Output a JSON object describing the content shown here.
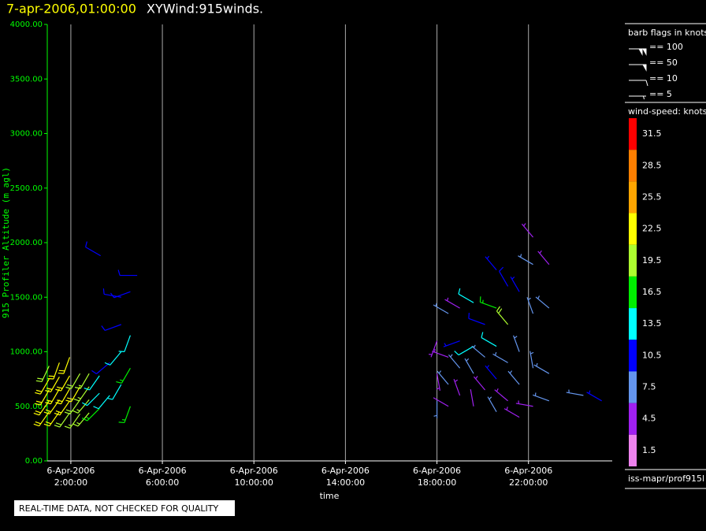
{
  "chart_data": {
    "type": "windbarb",
    "title_time": "7-apr-2006,01:00:00",
    "title": "XYWind:915winds.",
    "ylabel": "915 Profiler Altitude (m agl)",
    "xlabel": "time",
    "xlim": [
      0.97,
      25.66
    ],
    "ylim": [
      0,
      4000
    ],
    "yticks": [
      {
        "value": 0,
        "label": "0.00"
      },
      {
        "value": 500,
        "label": "500.00"
      },
      {
        "value": 1000,
        "label": "1000.00"
      },
      {
        "value": 1500,
        "label": "1500.00"
      },
      {
        "value": 2000,
        "label": "2000.00"
      },
      {
        "value": 2500,
        "label": "2500.00"
      },
      {
        "value": 3000,
        "label": "3000.00"
      },
      {
        "value": 3500,
        "label": "3500.00"
      },
      {
        "value": 4000,
        "label": "4000.00"
      }
    ],
    "xticks": [
      {
        "value": 2,
        "date": "6-Apr-2006",
        "label": "2:00:00"
      },
      {
        "value": 6,
        "date": "6-Apr-2006",
        "label": "6:00:00"
      },
      {
        "value": 10,
        "date": "6-Apr-2006",
        "label": "10:00:00"
      },
      {
        "value": 14,
        "date": "6-Apr-2006",
        "label": "14:00:00"
      },
      {
        "value": 18,
        "date": "6-Apr-2006",
        "label": "18:00:00"
      },
      {
        "value": 22,
        "date": "6-Apr-2006",
        "label": "22:00:00"
      }
    ],
    "grid": true,
    "barb_legend_title": "barb flags in knots",
    "barb_flags": [
      {
        "label": "== 100",
        "value": 100
      },
      {
        "label": "== 50",
        "value": 50
      },
      {
        "label": "== 10",
        "value": 10
      },
      {
        "label": "== 5",
        "value": 5
      }
    ],
    "colorbar": {
      "title": "wind-speed: knots",
      "colors": [
        "#ff0000",
        "#ff7f00",
        "#ffa500",
        "#ffff00",
        "#adff2f",
        "#00ee00",
        "#00ffff",
        "#0000ff",
        "#6495ed",
        "#a020f0",
        "#ee82ee"
      ],
      "labels": [
        31.5,
        28.5,
        25.5,
        22.5,
        19.5,
        16.5,
        13.5,
        10.5,
        7.5,
        4.5,
        1.5
      ]
    },
    "source": "iss-mapr/prof915l",
    "footer": "REAL-TIME DATA, NOT CHECKED FOR QUALITY",
    "barbs": [
      {
        "t": 1.05,
        "alt": 450,
        "speed": 21,
        "dir": 215
      },
      {
        "t": 1.05,
        "alt": 550,
        "speed": 22,
        "dir": 215
      },
      {
        "t": 1.05,
        "alt": 650,
        "speed": 22,
        "dir": 210
      },
      {
        "t": 1.05,
        "alt": 750,
        "speed": 21,
        "dir": 210
      },
      {
        "t": 1.05,
        "alt": 870,
        "speed": 20,
        "dir": 205
      },
      {
        "t": 1.5,
        "alt": 450,
        "speed": 21,
        "dir": 215
      },
      {
        "t": 1.5,
        "alt": 560,
        "speed": 22,
        "dir": 215
      },
      {
        "t": 1.5,
        "alt": 660,
        "speed": 22,
        "dir": 210
      },
      {
        "t": 1.5,
        "alt": 770,
        "speed": 21,
        "dir": 210
      },
      {
        "t": 1.5,
        "alt": 900,
        "speed": 23,
        "dir": 200
      },
      {
        "t": 1.95,
        "alt": 440,
        "speed": 20,
        "dir": 215
      },
      {
        "t": 1.95,
        "alt": 550,
        "speed": 21,
        "dir": 215
      },
      {
        "t": 1.95,
        "alt": 660,
        "speed": 22,
        "dir": 210
      },
      {
        "t": 1.95,
        "alt": 780,
        "speed": 21,
        "dir": 210
      },
      {
        "t": 1.95,
        "alt": 950,
        "speed": 22,
        "dir": 200
      },
      {
        "t": 2.4,
        "alt": 430,
        "speed": 19,
        "dir": 215
      },
      {
        "t": 2.4,
        "alt": 560,
        "speed": 20,
        "dir": 215
      },
      {
        "t": 2.4,
        "alt": 680,
        "speed": 21,
        "dir": 210
      },
      {
        "t": 2.4,
        "alt": 800,
        "speed": 20,
        "dir": 210
      },
      {
        "t": 2.8,
        "alt": 440,
        "speed": 18,
        "dir": 220
      },
      {
        "t": 2.8,
        "alt": 560,
        "speed": 19,
        "dir": 220
      },
      {
        "t": 2.8,
        "alt": 680,
        "speed": 19,
        "dir": 215
      },
      {
        "t": 2.8,
        "alt": 800,
        "speed": 18,
        "dir": 210
      },
      {
        "t": 3.25,
        "alt": 480,
        "speed": 16,
        "dir": 225
      },
      {
        "t": 3.25,
        "alt": 620,
        "speed": 14,
        "dir": 225
      },
      {
        "t": 3.25,
        "alt": 780,
        "speed": 14,
        "dir": 215
      },
      {
        "t": 3.3,
        "alt": 1880,
        "speed": 11,
        "dir": 300
      },
      {
        "t": 3.7,
        "alt": 600,
        "speed": 12,
        "dir": 220
      },
      {
        "t": 3.7,
        "alt": 900,
        "speed": 11,
        "dir": 230
      },
      {
        "t": 4.2,
        "alt": 700,
        "speed": 13,
        "dir": 210
      },
      {
        "t": 4.2,
        "alt": 1000,
        "speed": 14,
        "dir": 220
      },
      {
        "t": 4.2,
        "alt": 1250,
        "speed": 11,
        "dir": 250
      },
      {
        "t": 4.2,
        "alt": 1500,
        "speed": 10,
        "dir": 280
      },
      {
        "t": 4.6,
        "alt": 500,
        "speed": 16,
        "dir": 200
      },
      {
        "t": 4.6,
        "alt": 850,
        "speed": 15,
        "dir": 210
      },
      {
        "t": 4.6,
        "alt": 1150,
        "speed": 12,
        "dir": 200
      },
      {
        "t": 4.6,
        "alt": 1550,
        "speed": 11,
        "dir": 250
      },
      {
        "t": 4.9,
        "alt": 1700,
        "speed": 10,
        "dir": 270
      },
      {
        "t": 18.0,
        "alt": 550,
        "speed": 6,
        "dir": 180
      },
      {
        "t": 18.0,
        "alt": 800,
        "speed": 5,
        "dir": 170
      },
      {
        "t": 18.0,
        "alt": 1100,
        "speed": 5,
        "dir": 200
      },
      {
        "t": 18.5,
        "alt": 500,
        "speed": 4,
        "dir": 300
      },
      {
        "t": 18.5,
        "alt": 700,
        "speed": 6,
        "dir": 320
      },
      {
        "t": 18.5,
        "alt": 950,
        "speed": 5,
        "dir": 290
      },
      {
        "t": 18.5,
        "alt": 1350,
        "speed": 7,
        "dir": 300
      },
      {
        "t": 19.0,
        "alt": 600,
        "speed": 5,
        "dir": 340
      },
      {
        "t": 19.0,
        "alt": 850,
        "speed": 7,
        "dir": 320
      },
      {
        "t": 19.0,
        "alt": 1100,
        "speed": 9,
        "dir": 250
      },
      {
        "t": 19.0,
        "alt": 1400,
        "speed": 5,
        "dir": 300
      },
      {
        "t": 19.6,
        "alt": 500,
        "speed": 4,
        "dir": 350
      },
      {
        "t": 19.6,
        "alt": 800,
        "speed": 6,
        "dir": 330
      },
      {
        "t": 19.6,
        "alt": 1050,
        "speed": 14,
        "dir": 240
      },
      {
        "t": 19.6,
        "alt": 1450,
        "speed": 12,
        "dir": 300
      },
      {
        "t": 20.1,
        "alt": 650,
        "speed": 5,
        "dir": 320
      },
      {
        "t": 20.1,
        "alt": 950,
        "speed": 8,
        "dir": 310
      },
      {
        "t": 20.1,
        "alt": 1250,
        "speed": 10,
        "dir": 290
      },
      {
        "t": 20.6,
        "alt": 450,
        "speed": 6,
        "dir": 330
      },
      {
        "t": 20.6,
        "alt": 750,
        "speed": 9,
        "dir": 320
      },
      {
        "t": 20.6,
        "alt": 1050,
        "speed": 12,
        "dir": 300
      },
      {
        "t": 20.6,
        "alt": 1400,
        "speed": 15,
        "dir": 290
      },
      {
        "t": 20.6,
        "alt": 1750,
        "speed": 9,
        "dir": 320
      },
      {
        "t": 21.1,
        "alt": 550,
        "speed": 5,
        "dir": 310
      },
      {
        "t": 21.1,
        "alt": 900,
        "speed": 8,
        "dir": 300
      },
      {
        "t": 21.1,
        "alt": 1250,
        "speed": 20,
        "dir": 320
      },
      {
        "t": 21.1,
        "alt": 1600,
        "speed": 11,
        "dir": 330
      },
      {
        "t": 21.6,
        "alt": 400,
        "speed": 5,
        "dir": 300
      },
      {
        "t": 21.6,
        "alt": 700,
        "speed": 7,
        "dir": 320
      },
      {
        "t": 21.6,
        "alt": 1000,
        "speed": 6,
        "dir": 340
      },
      {
        "t": 21.6,
        "alt": 1550,
        "speed": 9,
        "dir": 330
      },
      {
        "t": 22.2,
        "alt": 500,
        "speed": 5,
        "dir": 280
      },
      {
        "t": 22.2,
        "alt": 850,
        "speed": 6,
        "dir": 350
      },
      {
        "t": 22.2,
        "alt": 1350,
        "speed": 7,
        "dir": 340
      },
      {
        "t": 22.2,
        "alt": 1800,
        "speed": 6,
        "dir": 300
      },
      {
        "t": 22.2,
        "alt": 2050,
        "speed": 5,
        "dir": 320
      },
      {
        "t": 22.9,
        "alt": 550,
        "speed": 6,
        "dir": 290
      },
      {
        "t": 22.9,
        "alt": 800,
        "speed": 7,
        "dir": 300
      },
      {
        "t": 22.9,
        "alt": 1400,
        "speed": 6,
        "dir": 310
      },
      {
        "t": 22.9,
        "alt": 1800,
        "speed": 5,
        "dir": 320
      },
      {
        "t": 24.4,
        "alt": 600,
        "speed": 6,
        "dir": 280
      },
      {
        "t": 25.2,
        "alt": 550,
        "speed": 9,
        "dir": 300
      }
    ]
  }
}
